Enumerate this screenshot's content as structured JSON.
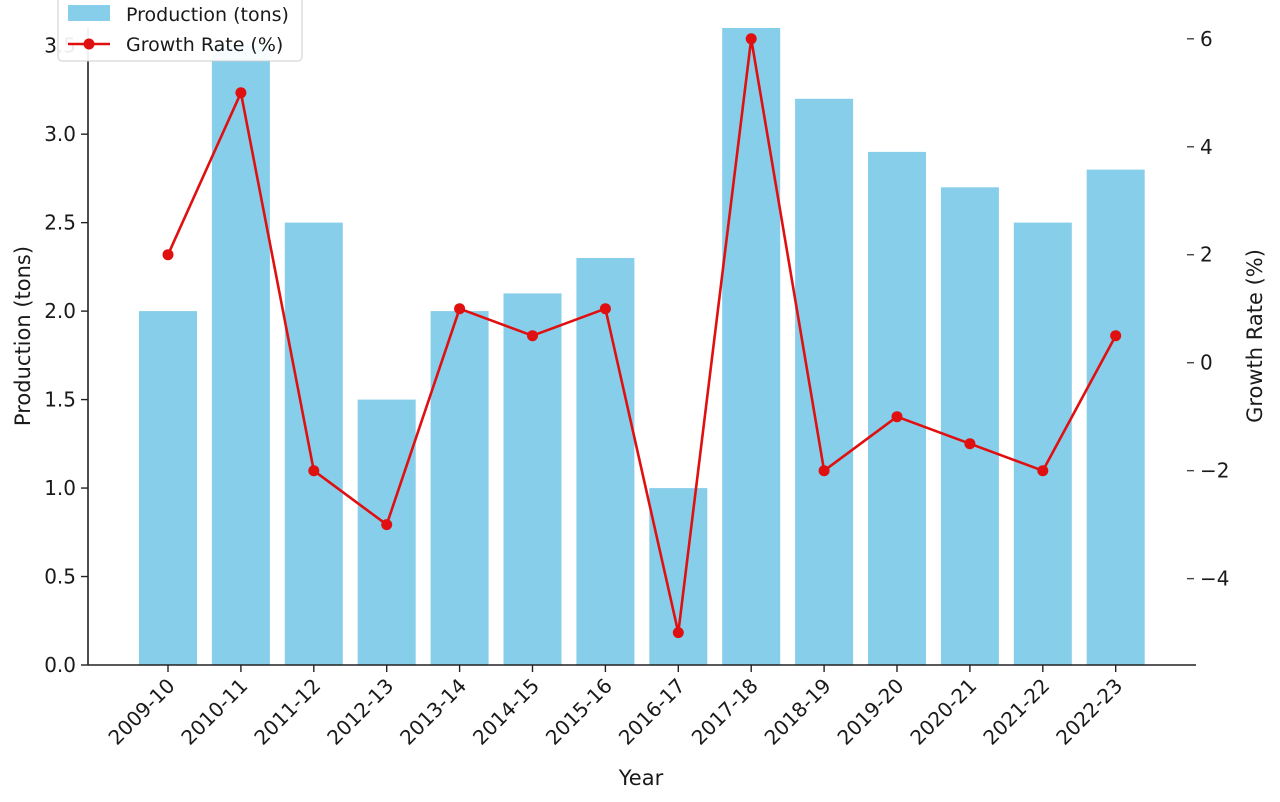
{
  "chart_data": {
    "type": "bar",
    "categories": [
      "2009-10",
      "2010-11",
      "2011-12",
      "2012-13",
      "2013-14",
      "2014-15",
      "2015-16",
      "2016-17",
      "2017-18",
      "2018-19",
      "2019-20",
      "2020-21",
      "2021-22",
      "2022-23"
    ],
    "series": [
      {
        "name": "Production (tons)",
        "type": "bar",
        "axis": "left",
        "color": "#87CEEB",
        "values": [
          2.0,
          3.5,
          2.5,
          1.5,
          2.0,
          2.1,
          2.3,
          1.0,
          3.6,
          3.2,
          2.9,
          2.7,
          2.5,
          2.8
        ]
      },
      {
        "name": "Growth Rate (%)",
        "type": "line",
        "axis": "right",
        "color": "#E01010",
        "values": [
          2,
          5,
          -2,
          -3,
          1,
          0.5,
          1,
          -5,
          6,
          -2,
          -1,
          -1.5,
          -2,
          0.5
        ]
      }
    ],
    "xlabel": "Year",
    "ylabel": "Production (tons)",
    "y2label": "Growth Rate (%)",
    "ylim": [
      0,
      3.6
    ],
    "y2lim": [
      -5.6,
      6.2
    ],
    "yticks": [
      "0.0",
      "0.5",
      "1.0",
      "1.5",
      "2.0",
      "2.5",
      "3.0",
      "3.5"
    ],
    "y2ticks": [
      "−4",
      "−2",
      "0",
      "2",
      "4",
      "6"
    ],
    "grid": false,
    "legend_position": "top-left"
  }
}
